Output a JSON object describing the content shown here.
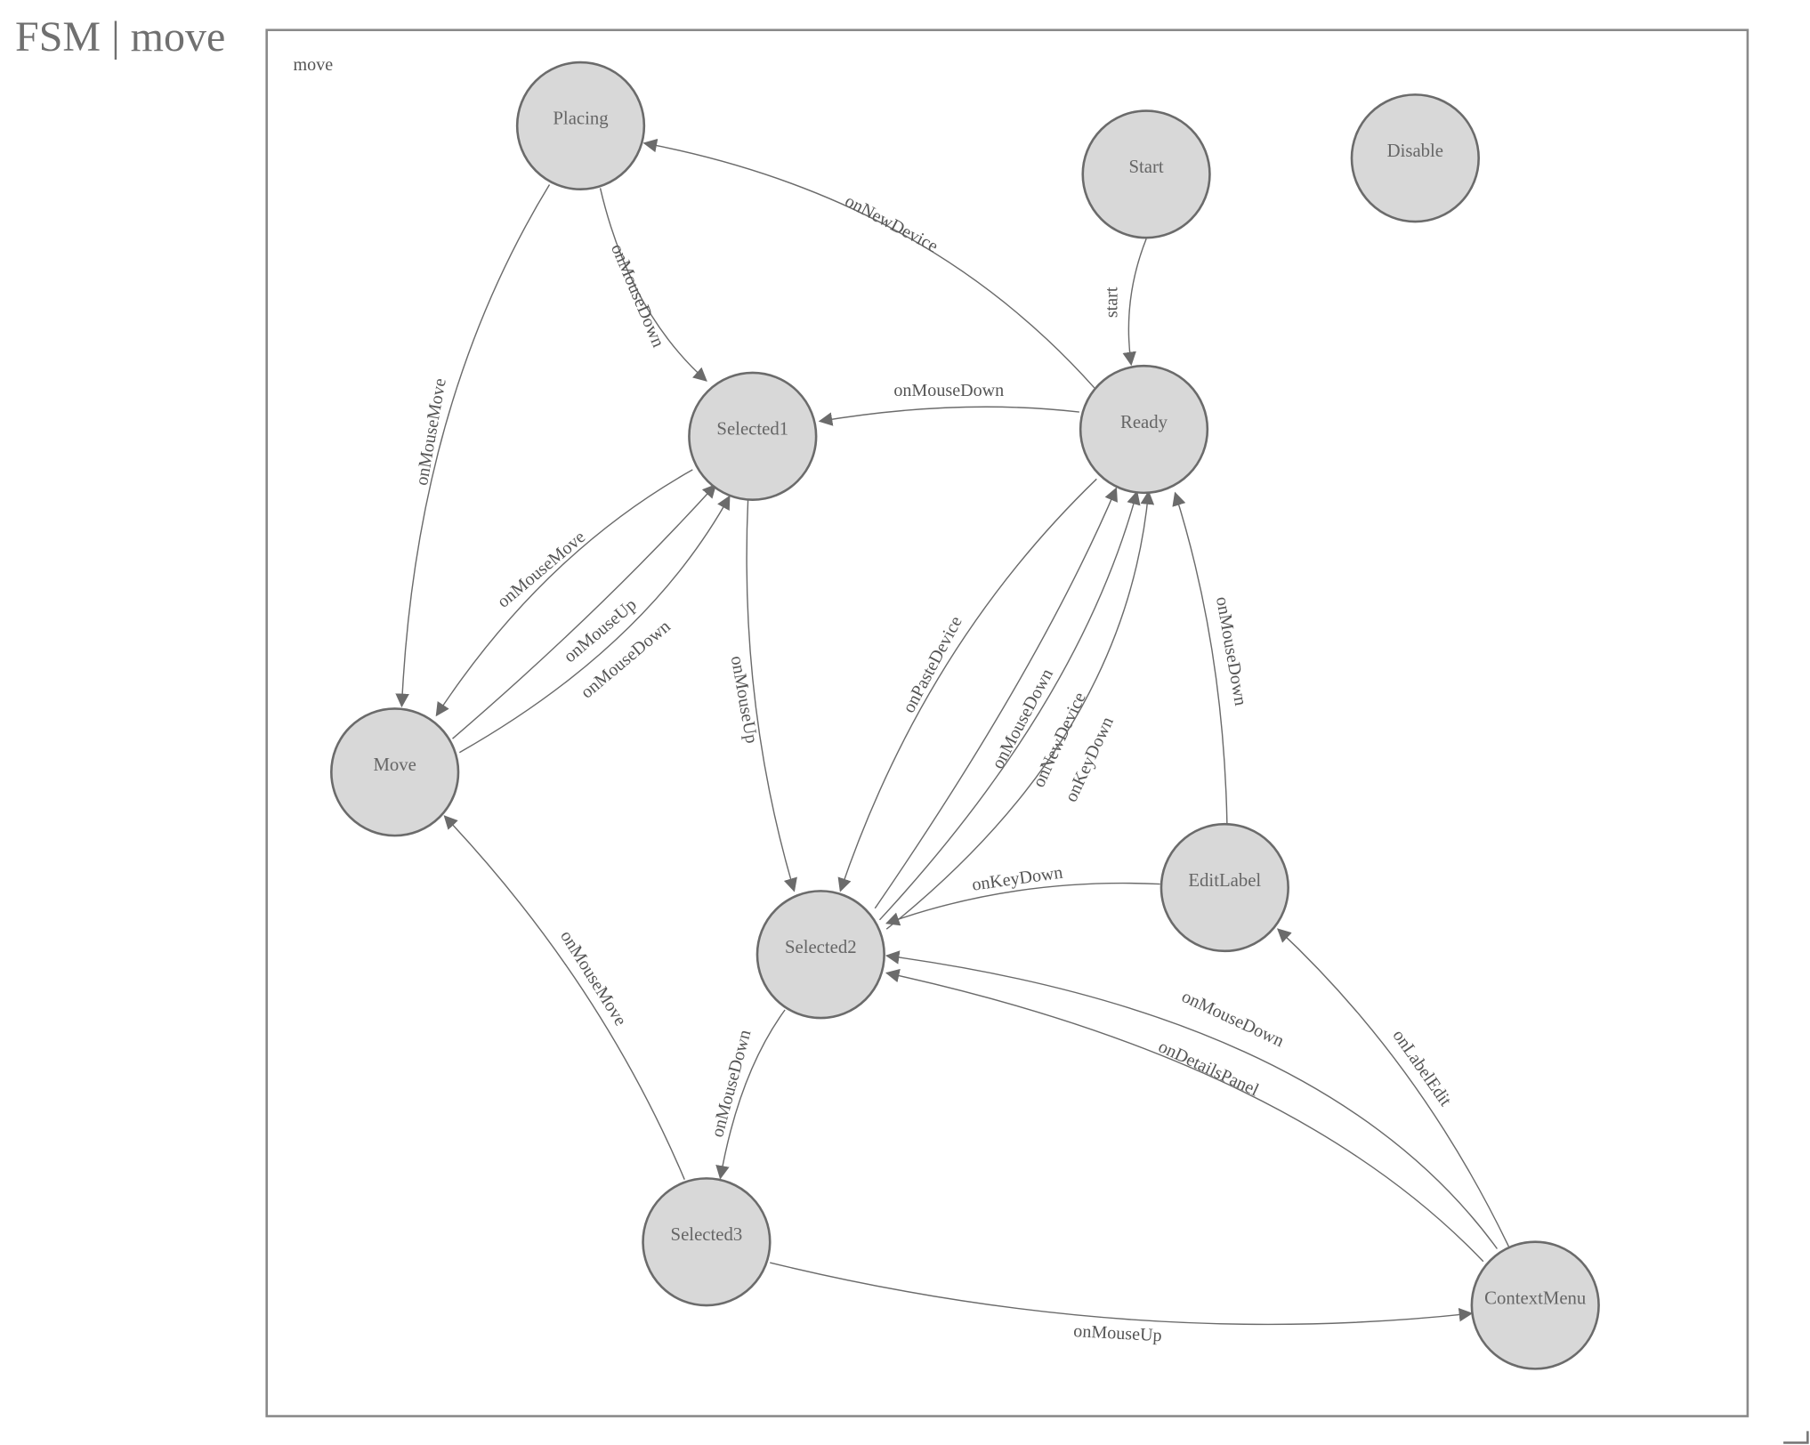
{
  "header": {
    "title": "FSM | move"
  },
  "diagram": {
    "group_label": "move",
    "colors": {
      "node_fill": "#d8d8d8",
      "stroke": "#6b6b6b",
      "text": "#666666"
    },
    "states": [
      "Placing",
      "Start",
      "Disable",
      "Selected1",
      "Ready",
      "Move",
      "EditLabel",
      "Selected2",
      "Selected3",
      "ContextMenu"
    ],
    "transitions": [
      {
        "from": "Ready",
        "to": "Placing",
        "label": "onNewDevice"
      },
      {
        "from": "Placing",
        "to": "Selected1",
        "label": "onMouseDown"
      },
      {
        "from": "Placing",
        "to": "Move",
        "label": "onMouseMove"
      },
      {
        "from": "Start",
        "to": "Ready",
        "label": "start"
      },
      {
        "from": "Ready",
        "to": "Selected1",
        "label": "onMouseDown"
      },
      {
        "from": "Selected1",
        "to": "Move",
        "label": "onMouseMove"
      },
      {
        "from": "Move",
        "to": "Selected1",
        "label": "onMouseUp"
      },
      {
        "from": "Move",
        "to": "Selected1",
        "label": "onMouseDown"
      },
      {
        "from": "Selected1",
        "to": "Selected2",
        "label": "onMouseUp"
      },
      {
        "from": "Ready",
        "to": "Selected2",
        "label": "onPasteDevice"
      },
      {
        "from": "Selected2",
        "to": "Ready",
        "label": "onMouseDown"
      },
      {
        "from": "Selected2",
        "to": "Ready",
        "label": "onNewDevice"
      },
      {
        "from": "Selected2",
        "to": "Ready",
        "label": "onKeyDown"
      },
      {
        "from": "EditLabel",
        "to": "Ready",
        "label": "onMouseDown"
      },
      {
        "from": "EditLabel",
        "to": "Selected2",
        "label": "onKeyDown"
      },
      {
        "from": "ContextMenu",
        "to": "Selected2",
        "label": "onMouseDown"
      },
      {
        "from": "ContextMenu",
        "to": "Selected2",
        "label": "onDetailsPanel"
      },
      {
        "from": "ContextMenu",
        "to": "EditLabel",
        "label": "onLabelEdit"
      },
      {
        "from": "Selected2",
        "to": "Selected3",
        "label": "onMouseDown"
      },
      {
        "from": "Selected3",
        "to": "Move",
        "label": "onMouseMove"
      },
      {
        "from": "Selected3",
        "to": "ContextMenu",
        "label": "onMouseUp"
      }
    ]
  }
}
